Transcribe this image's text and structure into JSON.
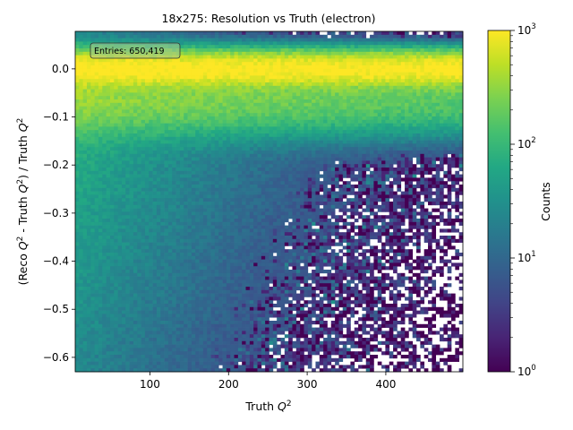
{
  "chart_data": {
    "type": "heatmap",
    "title": "18x275: Resolution vs Truth (electron)",
    "xlabel": "Truth Q²",
    "ylabel": "(Reco Q² - Truth Q²) / Truth Q²",
    "xlim": [
      5,
      498
    ],
    "ylim": [
      -0.63,
      0.078
    ],
    "x_ticks": [
      100,
      200,
      300,
      400
    ],
    "y_ticks": [
      0.0,
      -0.1,
      -0.2,
      -0.3,
      -0.4,
      -0.5,
      -0.6
    ],
    "x_tick_labels": [
      "100",
      "200",
      "300",
      "400"
    ],
    "y_tick_labels": [
      "0.0",
      "−0.1",
      "−0.2",
      "−0.3",
      "−0.4",
      "−0.5",
      "−0.6"
    ],
    "colorbar": {
      "label": "Counts",
      "scale": "log",
      "range": [
        1,
        1000
      ],
      "ticks": [
        {
          "value": 1,
          "base": "10",
          "exp": "0"
        },
        {
          "value": 10,
          "base": "10",
          "exp": "1"
        },
        {
          "value": 100,
          "base": "10",
          "exp": "2"
        },
        {
          "value": 1000,
          "base": "10",
          "exp": "3"
        }
      ],
      "colormap": "viridis"
    },
    "stats_box": "Entries: 650,419",
    "density_model": {
      "x_bins": 100,
      "y_bins": 100,
      "peak_y": 0.0,
      "core_counts_at_peak": 1000,
      "tail_counts_low_x": 100,
      "tail_counts_high_x": 3,
      "empty_bins_appear_above_x": 250
    }
  }
}
